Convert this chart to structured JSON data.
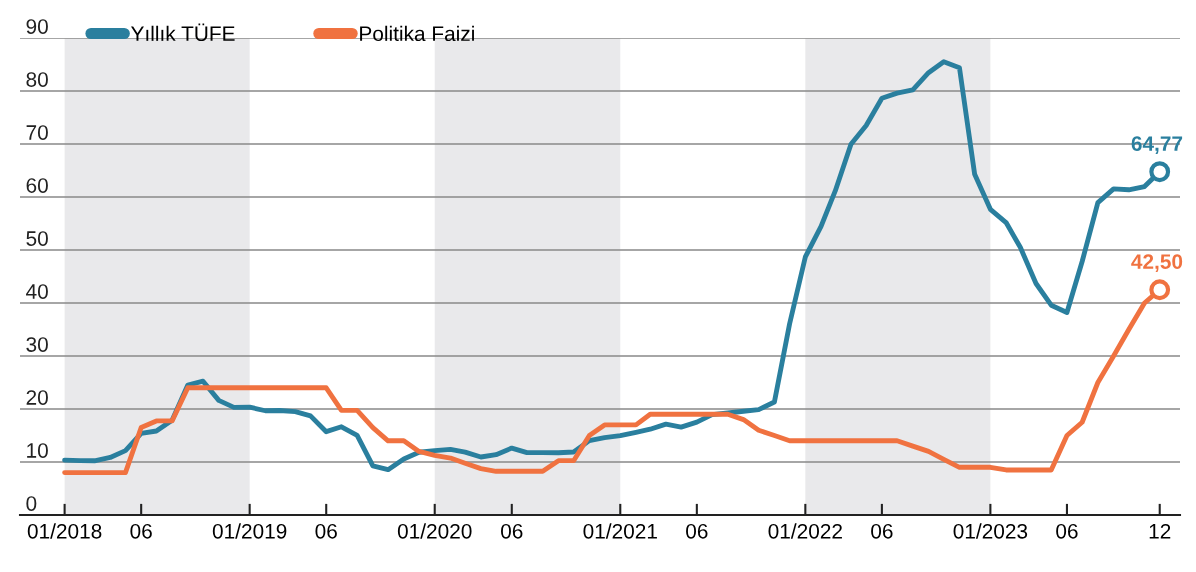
{
  "chart_data": {
    "type": "line",
    "x": [
      "2018-01",
      "2018-02",
      "2018-03",
      "2018-04",
      "2018-05",
      "2018-06",
      "2018-07",
      "2018-08",
      "2018-09",
      "2018-10",
      "2018-11",
      "2018-12",
      "2019-01",
      "2019-02",
      "2019-03",
      "2019-04",
      "2019-05",
      "2019-06",
      "2019-07",
      "2019-08",
      "2019-09",
      "2019-10",
      "2019-11",
      "2019-12",
      "2020-01",
      "2020-02",
      "2020-03",
      "2020-04",
      "2020-05",
      "2020-06",
      "2020-07",
      "2020-08",
      "2020-09",
      "2020-10",
      "2020-11",
      "2020-12",
      "2021-01",
      "2021-02",
      "2021-03",
      "2021-04",
      "2021-05",
      "2021-06",
      "2021-07",
      "2021-08",
      "2021-09",
      "2021-10",
      "2021-11",
      "2021-12",
      "2022-01",
      "2022-02",
      "2022-03",
      "2022-04",
      "2022-05",
      "2022-06",
      "2022-07",
      "2022-08",
      "2022-09",
      "2022-10",
      "2022-11",
      "2022-12",
      "2023-01",
      "2023-02",
      "2023-03",
      "2023-04",
      "2023-05",
      "2023-06",
      "2023-07",
      "2023-08",
      "2023-09",
      "2023-10",
      "2023-11",
      "2023-12"
    ],
    "series": [
      {
        "name": "Yıllık TÜFE",
        "color": "#2a7f9e",
        "values": [
          10.35,
          10.26,
          10.23,
          10.85,
          12.15,
          15.39,
          15.85,
          17.9,
          24.52,
          25.24,
          21.62,
          20.3,
          20.35,
          19.67,
          19.71,
          19.5,
          18.71,
          15.72,
          16.65,
          15.01,
          9.26,
          8.55,
          10.56,
          11.84,
          12.15,
          12.37,
          11.86,
          10.94,
          11.39,
          12.62,
          11.76,
          11.77,
          11.75,
          11.89,
          14.03,
          14.6,
          14.97,
          15.61,
          16.19,
          17.14,
          16.59,
          17.53,
          18.95,
          19.25,
          19.58,
          19.89,
          21.31,
          36.08,
          48.69,
          54.44,
          61.14,
          69.97,
          73.5,
          78.62,
          79.6,
          80.21,
          83.45,
          85.51,
          84.39,
          64.27,
          57.68,
          55.18,
          50.51,
          43.68,
          39.59,
          38.21,
          47.83,
          58.94,
          61.53,
          61.36,
          61.98,
          64.77
        ]
      },
      {
        "name": "Politika Faizi",
        "color": "#f07240",
        "values": [
          8,
          8,
          8,
          8,
          8,
          16.5,
          17.75,
          17.75,
          24,
          24,
          24,
          24,
          24,
          24,
          24,
          24,
          24,
          24,
          19.75,
          19.75,
          16.5,
          14,
          14,
          12,
          11.25,
          10.75,
          9.75,
          8.75,
          8.25,
          8.25,
          8.25,
          8.25,
          10.25,
          10.25,
          15,
          17,
          17,
          17,
          19,
          19,
          19,
          19,
          19,
          19,
          18,
          16,
          15,
          14,
          14,
          14,
          14,
          14,
          14,
          14,
          14,
          13,
          12,
          10.5,
          9,
          9,
          9,
          8.5,
          8.5,
          8.5,
          8.5,
          15,
          17.5,
          25,
          30,
          35,
          40,
          42.5
        ]
      }
    ],
    "xlim": [
      "2017-10-05",
      "2024-01-10"
    ],
    "xticks": [
      {
        "value": "2018-01",
        "label": "01/2018"
      },
      {
        "value": "2018-06",
        "label": "06"
      },
      {
        "value": "2019-01",
        "label": "01/2019"
      },
      {
        "value": "2019-06",
        "label": "06"
      },
      {
        "value": "2020-01",
        "label": "01/2020"
      },
      {
        "value": "2020-06",
        "label": "06"
      },
      {
        "value": "2021-01",
        "label": "01/2021"
      },
      {
        "value": "2021-06",
        "label": "06"
      },
      {
        "value": "2022-01",
        "label": "01/2022"
      },
      {
        "value": "2022-06",
        "label": "06"
      },
      {
        "value": "2023-01",
        "label": "01/2023"
      },
      {
        "value": "2023-06",
        "label": "06"
      },
      {
        "value": "2023-12",
        "label": "12"
      }
    ],
    "ylim": [
      0,
      90
    ],
    "yticks": [
      0,
      10,
      20,
      30,
      40,
      50,
      60,
      70,
      80,
      90
    ],
    "bands": [
      {
        "axis": "x",
        "from": "2018-01",
        "to": "2019-01",
        "color": "#e9e9eb"
      },
      {
        "axis": "x",
        "from": "2020-01",
        "to": "2021-01",
        "color": "#e9e9eb"
      },
      {
        "axis": "x",
        "from": "2022-01",
        "to": "2023-01",
        "color": "#e9e9eb"
      }
    ],
    "annotations": [
      {
        "text": "64,77",
        "x": "2023-12",
        "y": 64.77
      },
      {
        "text": "42,50",
        "x": "2023-12",
        "y": 42.5
      }
    ],
    "grid": "y",
    "legend": "top left"
  }
}
